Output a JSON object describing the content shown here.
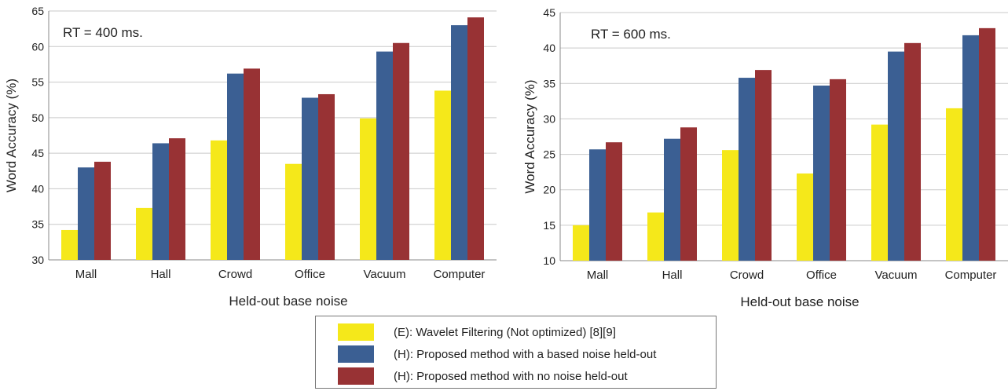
{
  "chart_data": [
    {
      "type": "bar",
      "annotation": "RT = 400 ms.",
      "xlabel": "Held-out base noise",
      "ylabel": "Word Accuracy (%)",
      "ylim": [
        30,
        65
      ],
      "yticks": [
        30,
        35,
        40,
        45,
        50,
        55,
        60,
        65
      ],
      "grid": true,
      "categories": [
        "Mall",
        "Hall",
        "Crowd",
        "Office",
        "Vacuum",
        "Computer"
      ],
      "series": [
        {
          "name": "(E):  Wavelet Filtering (Not optimized) [8][9]",
          "values": [
            34.2,
            37.3,
            46.8,
            43.5,
            49.9,
            53.8
          ]
        },
        {
          "name": "(H):  Proposed method with a based noise held-out",
          "values": [
            43.0,
            46.4,
            56.2,
            52.8,
            59.3,
            63.0
          ]
        },
        {
          "name": "(H):  Proposed method with no noise held-out",
          "values": [
            43.8,
            47.1,
            56.9,
            53.3,
            60.5,
            64.1
          ]
        }
      ]
    },
    {
      "type": "bar",
      "annotation": "RT = 600 ms.",
      "xlabel": "Held-out base noise",
      "ylabel": "Word Accuracy (%)",
      "ylim": [
        10,
        45
      ],
      "yticks": [
        10,
        15,
        20,
        25,
        30,
        35,
        40,
        45
      ],
      "grid": true,
      "categories": [
        "Mall",
        "Hall",
        "Crowd",
        "Office",
        "Vacuum",
        "Computer"
      ],
      "series": [
        {
          "name": "(E):  Wavelet Filtering (Not optimized) [8][9]",
          "values": [
            15.0,
            16.8,
            25.6,
            22.3,
            29.2,
            31.5
          ]
        },
        {
          "name": "(H):  Proposed method with a based noise held-out",
          "values": [
            25.7,
            27.2,
            35.8,
            34.7,
            39.5,
            41.8
          ]
        },
        {
          "name": "(H):  Proposed method with no noise held-out",
          "values": [
            26.7,
            28.8,
            36.9,
            35.6,
            40.7,
            42.8
          ]
        }
      ]
    }
  ],
  "legend": {
    "position": "bottom-center",
    "items": [
      {
        "label": "(E):  Wavelet Filtering (Not optimized) [8][9]",
        "color": "#f5e81a"
      },
      {
        "label": "(H):  Proposed method with a based noise held-out",
        "color": "#3b5f93"
      },
      {
        "label": "(H):  Proposed method with no noise held-out",
        "color": "#983234"
      }
    ]
  }
}
